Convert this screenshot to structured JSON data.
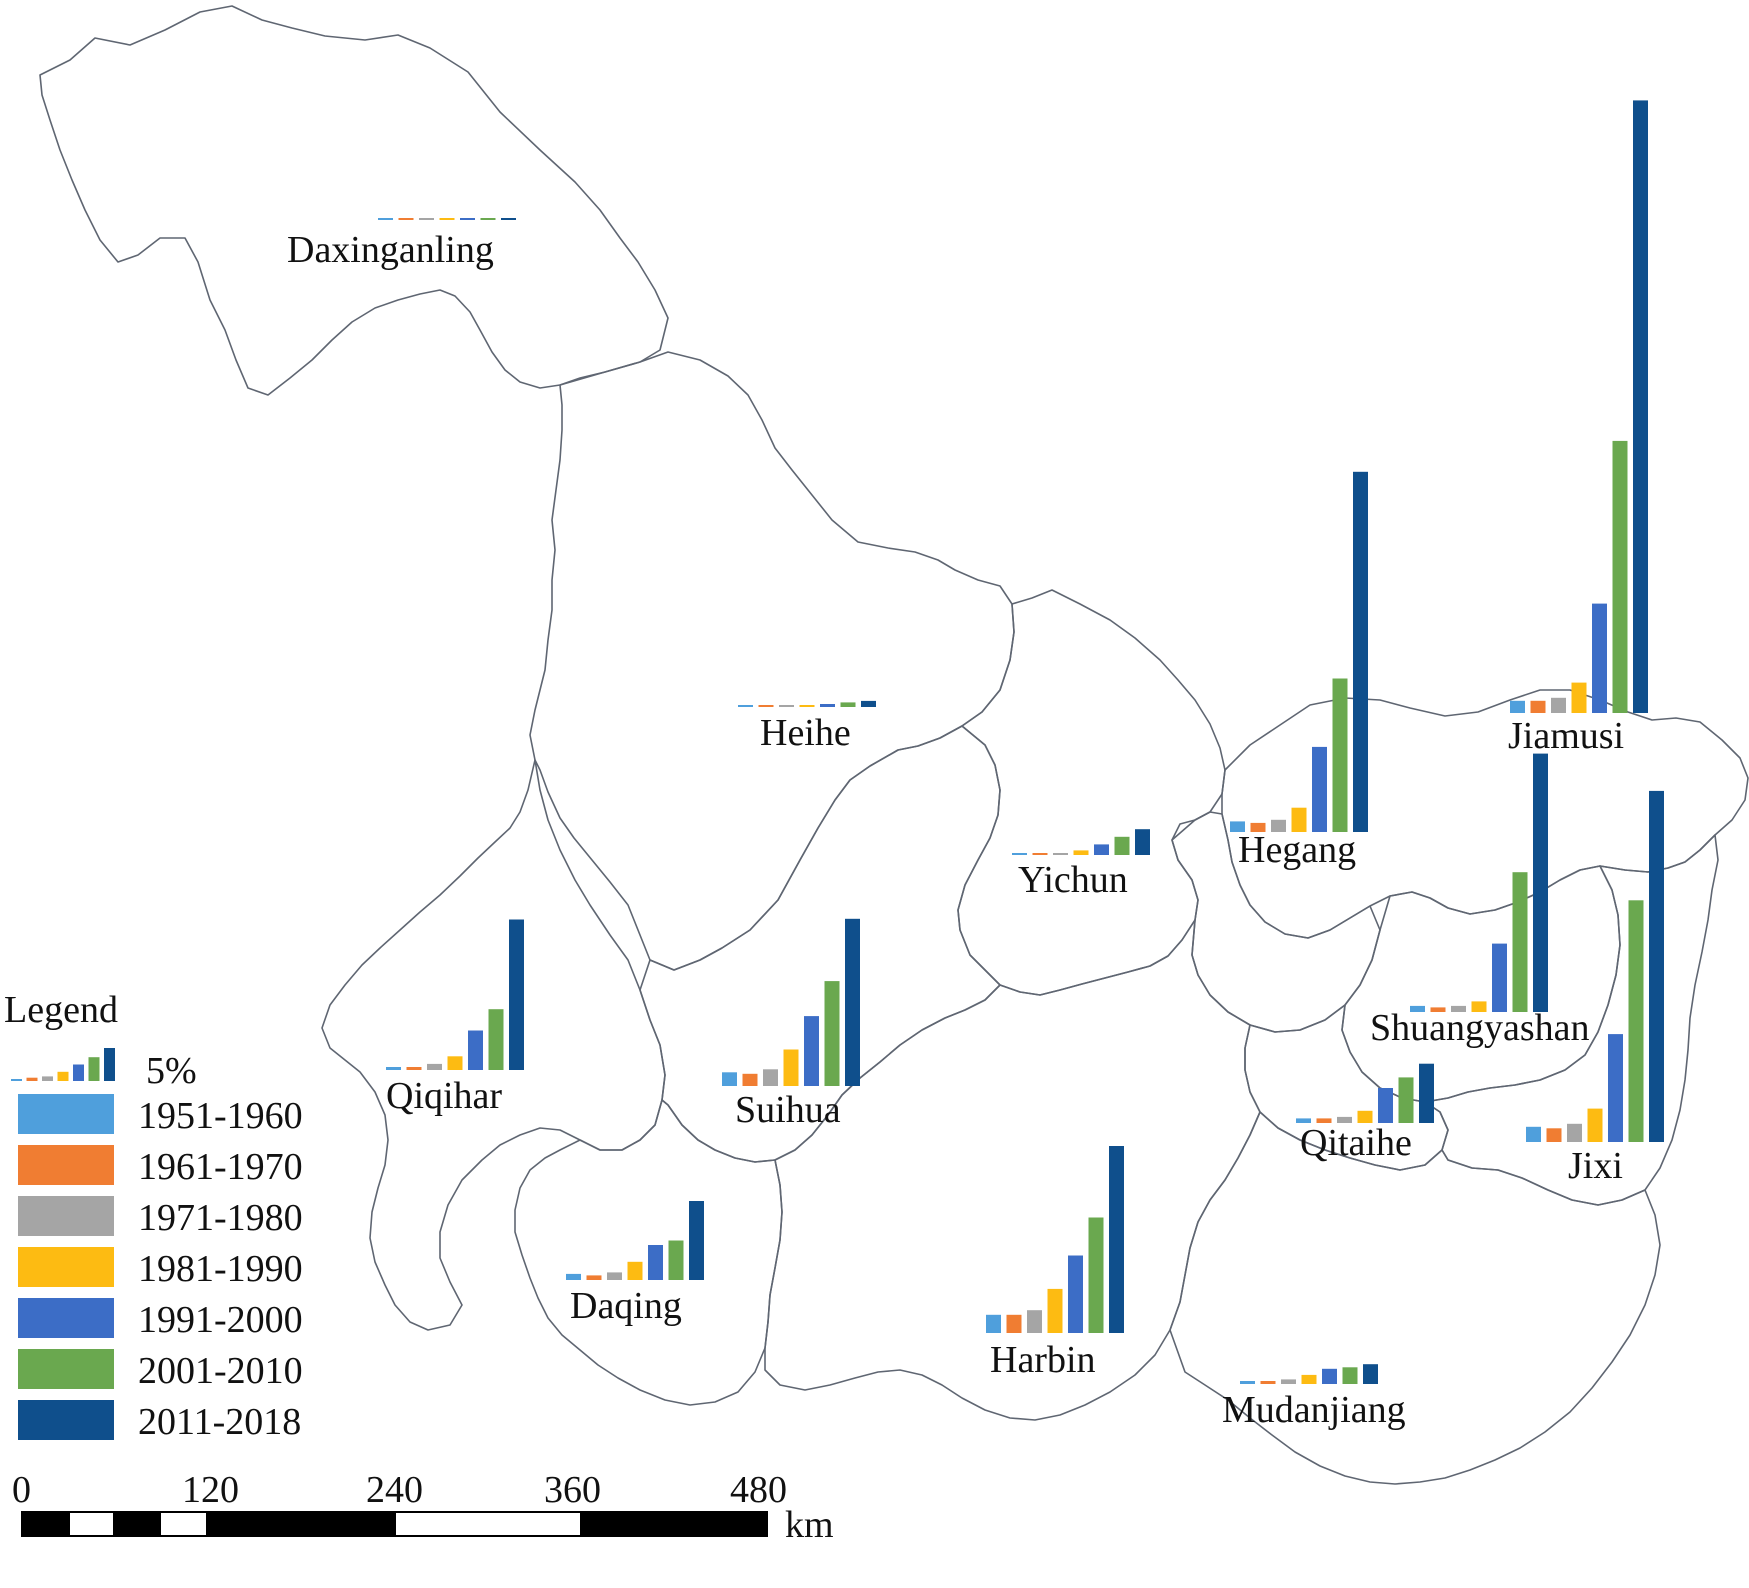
{
  "legend": {
    "title": "Legend",
    "reference_label": "5%",
    "reference_value": 5,
    "periods": [
      {
        "label": "1951-1960",
        "color": "#4f9fdc"
      },
      {
        "label": "1961-1970",
        "color": "#f07d32"
      },
      {
        "label": "1971-1980",
        "color": "#a5a5a5"
      },
      {
        "label": "1981-1990",
        "color": "#fdbb12"
      },
      {
        "label": "1991-2000",
        "color": "#3c6dc6"
      },
      {
        "label": "2001-2010",
        "color": "#6aa84f"
      },
      {
        "label": "2011-2018",
        "color": "#0f4f8c"
      }
    ]
  },
  "scale_bar": {
    "ticks": [
      "0",
      "120",
      "240",
      "360",
      "480"
    ],
    "unit": "km"
  },
  "chart_data": {
    "type": "bar",
    "categories": [
      "1951-1960",
      "1961-1970",
      "1971-1980",
      "1981-1990",
      "1991-2000",
      "2001-2010",
      "2011-2018"
    ],
    "unit": "%",
    "cities": [
      {
        "name": "Daxinganling",
        "values": [
          0,
          0,
          0,
          0,
          0.1,
          0,
          0.1
        ]
      },
      {
        "name": "Heihe",
        "values": [
          0.1,
          0.1,
          0.1,
          0.1,
          0.2,
          0.3,
          0.4
        ]
      },
      {
        "name": "Yichun",
        "values": [
          0.1,
          0.1,
          0.1,
          0.3,
          0.7,
          1.2,
          1.7
        ]
      },
      {
        "name": "Hegang",
        "values": [
          0.7,
          0.6,
          0.8,
          1.6,
          5.6,
          10.1,
          23.7
        ]
      },
      {
        "name": "Jiamusi",
        "values": [
          0.8,
          0.8,
          1.0,
          2.0,
          7.2,
          17.9,
          40.3
        ]
      },
      {
        "name": "Qiqihar",
        "values": [
          0.2,
          0.2,
          0.4,
          0.9,
          2.6,
          4.0,
          9.9
        ]
      },
      {
        "name": "Suihua",
        "values": [
          0.9,
          0.8,
          1.1,
          2.4,
          4.6,
          6.9,
          11.0
        ]
      },
      {
        "name": "Shuangyashan",
        "values": [
          0.4,
          0.3,
          0.4,
          0.7,
          4.5,
          9.2,
          17.0
        ]
      },
      {
        "name": "Qitaihe",
        "values": [
          0.3,
          0.3,
          0.4,
          0.8,
          2.3,
          3.0,
          3.9
        ]
      },
      {
        "name": "Jixi",
        "values": [
          1.0,
          0.9,
          1.2,
          2.2,
          7.1,
          15.9,
          23.1
        ]
      },
      {
        "name": "Daqing",
        "values": [
          0.4,
          0.3,
          0.5,
          1.2,
          2.3,
          2.6,
          5.2
        ]
      },
      {
        "name": "Harbin",
        "values": [
          1.2,
          1.2,
          1.5,
          2.9,
          5.1,
          7.6,
          12.3
        ]
      },
      {
        "name": "Mudanjiang",
        "values": [
          0.2,
          0.2,
          0.3,
          0.6,
          1.0,
          1.1,
          1.3
        ]
      }
    ]
  }
}
